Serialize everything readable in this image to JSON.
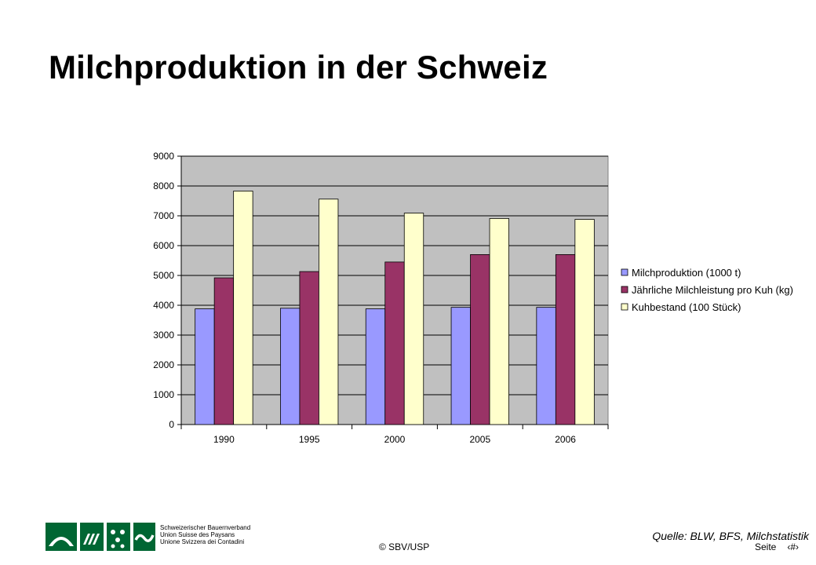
{
  "title": "Milchproduktion in der Schweiz",
  "chart_data": {
    "type": "bar",
    "categories": [
      "1990",
      "1995",
      "2000",
      "2005",
      "2006"
    ],
    "series": [
      {
        "name": "Milchproduktion (1000 t)",
        "color": "#9999ff",
        "values": [
          3880,
          3900,
          3880,
          3930,
          3930
        ]
      },
      {
        "name": "Jährliche Milchleistung pro Kuh (kg)",
        "color": "#993366",
        "values": [
          4920,
          5130,
          5450,
          5700,
          5700
        ]
      },
      {
        "name": "Kuhbestand (100 Stück)",
        "color": "#ffffcc",
        "values": [
          7830,
          7560,
          7090,
          6910,
          6880
        ]
      }
    ],
    "ylim": [
      0,
      9000
    ],
    "yticks": [
      0,
      1000,
      2000,
      3000,
      4000,
      5000,
      6000,
      7000,
      8000,
      9000
    ],
    "grid": true,
    "legend": "right",
    "plot_background": "#c0c0c0"
  },
  "source": "Quelle: BLW, BFS, Milchstatistik",
  "copyright": "© SBV/USP",
  "footer": {
    "page_label": "Seite",
    "page_number": "‹#›",
    "org_lines": [
      "Schweizerischer Bauernverband",
      "Union Suisse des Paysans",
      "Unione Svizzera dei Contadini"
    ],
    "logo_color": "#006633"
  }
}
